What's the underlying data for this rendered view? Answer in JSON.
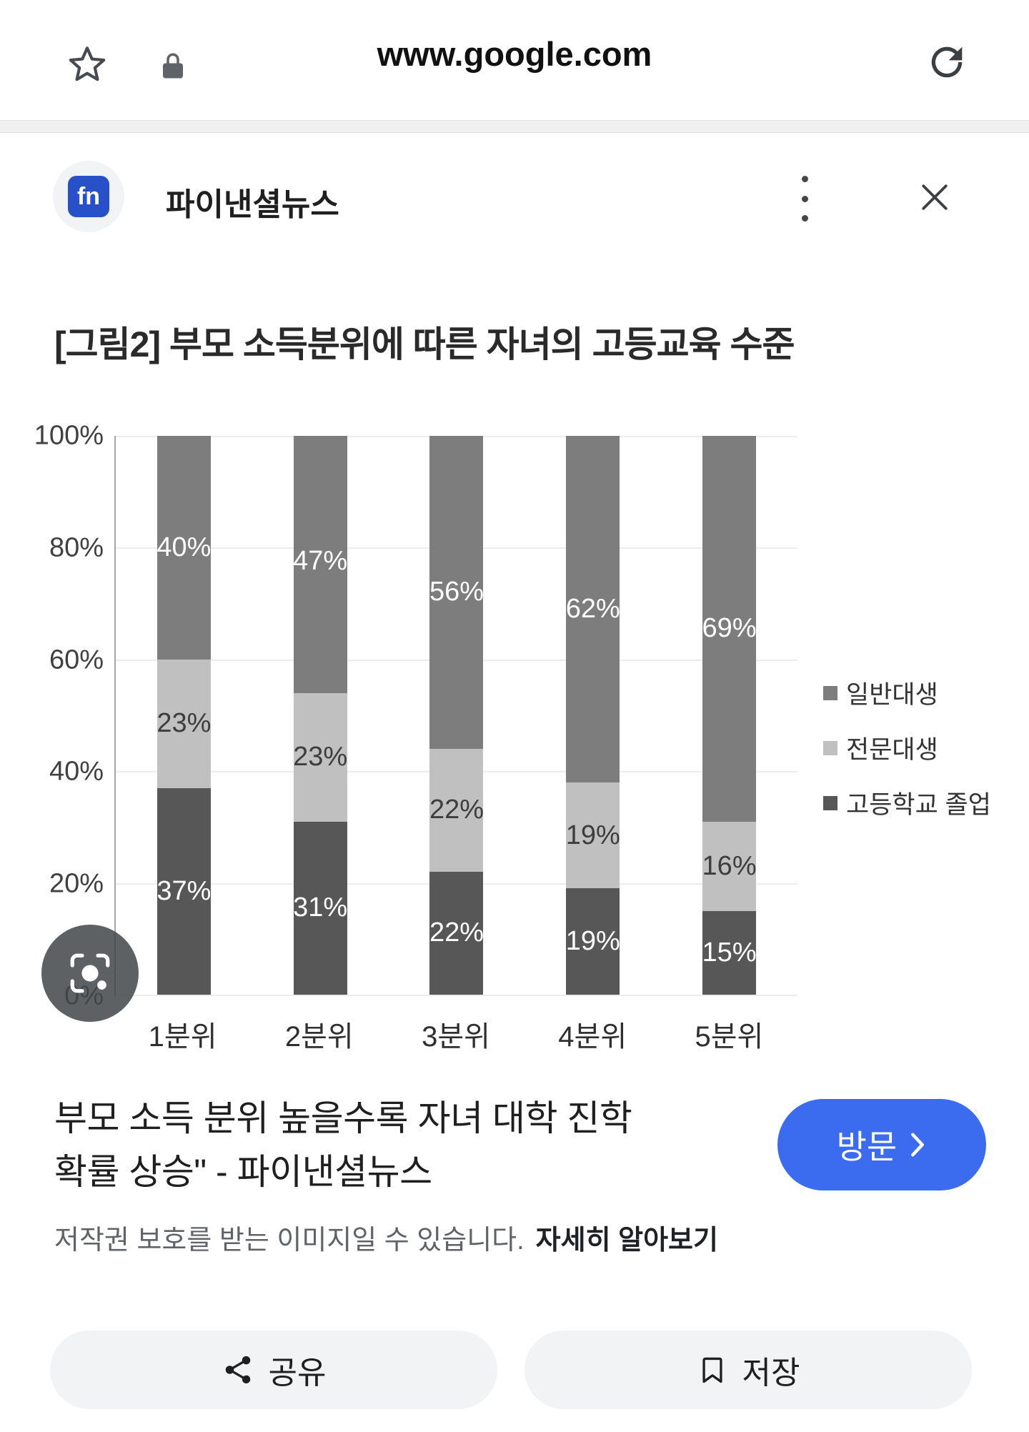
{
  "browser": {
    "url": "www.google.com",
    "icons": [
      "star-icon",
      "lock-icon",
      "refresh-icon"
    ]
  },
  "viewer": {
    "source_name": "파이낸셜뉴스",
    "source_logo_text": "fn",
    "headline": {
      "line1": "부모 소득 분위 높을수록 자녀 대학 진학",
      "line2": "확률 상승\" - 파이낸셜뉴스"
    },
    "visit_button": {
      "label": "방문",
      "chevron": "›",
      "color": "#3b6cf0"
    },
    "copyright_notice": "저작권 보호를 받는 이미지일 수 있습니다.",
    "learn_more": "자세히 알아보기",
    "actions": {
      "share": "공유",
      "save": "저장"
    },
    "icons": [
      "kebab-menu-icon",
      "close-icon",
      "lens-icon",
      "chevron-right-icon",
      "share-icon",
      "bookmark-icon"
    ]
  },
  "chart_data": {
    "type": "bar",
    "stacked": true,
    "title": "[그림2] 부모 소득분위에 따른 자녀의 고등교육 수준",
    "categories": [
      "1분위",
      "2분위",
      "3분위",
      "4분위",
      "5분위"
    ],
    "series": [
      {
        "name": "고등학교 졸업",
        "values": [
          37,
          31,
          22,
          19,
          15
        ],
        "color": "#575757",
        "label_color": "#ffffff"
      },
      {
        "name": "전문대생",
        "values": [
          23,
          23,
          22,
          19,
          16
        ],
        "color": "#c0c0c0",
        "label_color": "#3d3d3d"
      },
      {
        "name": "일반대생",
        "values": [
          40,
          47,
          56,
          62,
          69
        ],
        "color": "#7d7d7d",
        "label_color": "#ffffff"
      }
    ],
    "legend_order": [
      "일반대생",
      "전문대생",
      "고등학교 졸업"
    ],
    "legend_position": "right",
    "y_ticks": [
      "100%",
      "80%",
      "60%",
      "40%",
      "20%",
      "0%"
    ],
    "ylim": [
      0,
      100
    ],
    "grid": true,
    "xlabel": "",
    "ylabel": ""
  }
}
